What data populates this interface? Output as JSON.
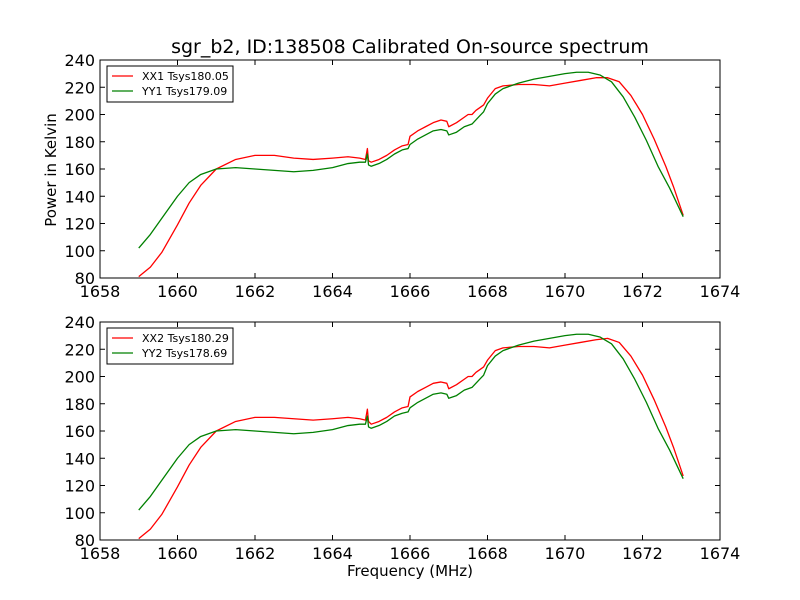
{
  "figure": {
    "title": "sgr_b2, ID:138508 Calibrated On-source spectrum",
    "xlabel": "Frequency (MHz)",
    "ylabel": "Power in Kelvin"
  },
  "colors": {
    "red": "#ff0000",
    "green": "#008000"
  },
  "chart_data": [
    {
      "type": "line",
      "xlim": [
        1658,
        1674
      ],
      "ylim": [
        80,
        240
      ],
      "xticks": [
        1658,
        1660,
        1662,
        1664,
        1666,
        1668,
        1670,
        1672,
        1674
      ],
      "yticks": [
        80,
        100,
        120,
        140,
        160,
        180,
        200,
        220,
        240
      ],
      "ylabel": "Power in Kelvin",
      "xlabel": "",
      "legend_position": "top-left",
      "series": [
        {
          "name": "XX1 Tsys180.05",
          "color": "#ff0000",
          "x": [
            1659.0,
            1659.3,
            1659.6,
            1660.0,
            1660.3,
            1660.6,
            1661.0,
            1661.5,
            1662.0,
            1662.5,
            1663.0,
            1663.5,
            1664.0,
            1664.4,
            1664.7,
            1664.85,
            1664.9,
            1664.93,
            1665.0,
            1665.2,
            1665.4,
            1665.6,
            1665.8,
            1665.95,
            1666.0,
            1666.2,
            1666.4,
            1666.6,
            1666.8,
            1666.95,
            1667.0,
            1667.2,
            1667.4,
            1667.5,
            1667.6,
            1667.7,
            1667.8,
            1667.9,
            1668.0,
            1668.2,
            1668.4,
            1668.8,
            1669.2,
            1669.6,
            1670.0,
            1670.4,
            1670.8,
            1671.1,
            1671.4,
            1671.7,
            1672.0,
            1672.3,
            1672.6,
            1672.8,
            1673.05
          ],
          "y": [
            81,
            88,
            99,
            119,
            135,
            148,
            160,
            167,
            170,
            170,
            168,
            167,
            168,
            169,
            168,
            167,
            175,
            166,
            165,
            167,
            170,
            174,
            177,
            178,
            184,
            188,
            191,
            194,
            196,
            195,
            191,
            194,
            198,
            200,
            200,
            203,
            205,
            207,
            212,
            219,
            221,
            222,
            222,
            221,
            223,
            225,
            227,
            227,
            224,
            214,
            200,
            182,
            162,
            147,
            126
          ]
        },
        {
          "name": "YY1 Tsys179.09",
          "color": "#008000",
          "x": [
            1659.0,
            1659.3,
            1659.6,
            1660.0,
            1660.3,
            1660.6,
            1661.0,
            1661.5,
            1662.0,
            1662.5,
            1663.0,
            1663.5,
            1664.0,
            1664.4,
            1664.7,
            1664.85,
            1664.9,
            1664.93,
            1665.0,
            1665.2,
            1665.4,
            1665.6,
            1665.8,
            1665.95,
            1666.0,
            1666.2,
            1666.4,
            1666.6,
            1666.8,
            1666.95,
            1667.0,
            1667.2,
            1667.4,
            1667.5,
            1667.6,
            1667.7,
            1667.8,
            1667.9,
            1668.0,
            1668.2,
            1668.4,
            1668.8,
            1669.2,
            1669.6,
            1670.0,
            1670.3,
            1670.6,
            1670.9,
            1671.2,
            1671.5,
            1671.8,
            1672.1,
            1672.4,
            1672.7,
            1673.05
          ],
          "y": [
            102,
            112,
            124,
            140,
            150,
            156,
            160,
            161,
            160,
            159,
            158,
            159,
            161,
            164,
            165,
            165,
            171,
            163,
            162,
            164,
            167,
            171,
            174,
            175,
            178,
            182,
            185,
            188,
            189,
            188,
            185,
            187,
            191,
            192,
            193,
            196,
            199,
            202,
            208,
            215,
            219,
            223,
            226,
            228,
            230,
            231,
            231,
            229,
            224,
            213,
            198,
            181,
            162,
            146,
            125
          ]
        }
      ]
    },
    {
      "type": "line",
      "xlim": [
        1658,
        1674
      ],
      "ylim": [
        80,
        240
      ],
      "xticks": [
        1658,
        1660,
        1662,
        1664,
        1666,
        1668,
        1670,
        1672,
        1674
      ],
      "yticks": [
        80,
        100,
        120,
        140,
        160,
        180,
        200,
        220,
        240
      ],
      "xlabel": "Frequency (MHz)",
      "ylabel": "",
      "legend_position": "top-left",
      "series": [
        {
          "name": "XX2 Tsys180.29",
          "color": "#ff0000",
          "x": [
            1659.0,
            1659.3,
            1659.6,
            1660.0,
            1660.3,
            1660.6,
            1661.0,
            1661.5,
            1662.0,
            1662.5,
            1663.0,
            1663.5,
            1664.0,
            1664.4,
            1664.7,
            1664.85,
            1664.9,
            1664.93,
            1665.0,
            1665.2,
            1665.4,
            1665.6,
            1665.8,
            1665.95,
            1666.0,
            1666.2,
            1666.4,
            1666.6,
            1666.8,
            1666.95,
            1667.0,
            1667.2,
            1667.4,
            1667.5,
            1667.6,
            1667.7,
            1667.8,
            1667.9,
            1668.0,
            1668.2,
            1668.4,
            1668.8,
            1669.2,
            1669.6,
            1670.0,
            1670.4,
            1670.8,
            1671.1,
            1671.4,
            1671.7,
            1672.0,
            1672.3,
            1672.6,
            1672.8,
            1673.05
          ],
          "y": [
            81,
            88,
            99,
            119,
            135,
            148,
            160,
            167,
            170,
            170,
            169,
            168,
            169,
            170,
            169,
            168,
            176,
            167,
            165,
            167,
            170,
            174,
            177,
            178,
            185,
            189,
            192,
            195,
            196,
            195,
            191,
            194,
            198,
            200,
            200,
            203,
            205,
            207,
            212,
            219,
            221,
            222,
            222,
            221,
            223,
            225,
            227,
            228,
            225,
            215,
            201,
            183,
            163,
            148,
            127
          ]
        },
        {
          "name": "YY2 Tsys178.69",
          "color": "#008000",
          "x": [
            1659.0,
            1659.3,
            1659.6,
            1660.0,
            1660.3,
            1660.6,
            1661.0,
            1661.5,
            1662.0,
            1662.5,
            1663.0,
            1663.5,
            1664.0,
            1664.4,
            1664.7,
            1664.85,
            1664.9,
            1664.93,
            1665.0,
            1665.2,
            1665.4,
            1665.6,
            1665.8,
            1665.95,
            1666.0,
            1666.2,
            1666.4,
            1666.6,
            1666.8,
            1666.95,
            1667.0,
            1667.2,
            1667.4,
            1667.5,
            1667.6,
            1667.7,
            1667.8,
            1667.9,
            1668.0,
            1668.2,
            1668.4,
            1668.8,
            1669.2,
            1669.6,
            1670.0,
            1670.3,
            1670.6,
            1670.9,
            1671.2,
            1671.5,
            1671.8,
            1672.1,
            1672.4,
            1672.7,
            1673.05
          ],
          "y": [
            102,
            112,
            124,
            140,
            150,
            156,
            160,
            161,
            160,
            159,
            158,
            159,
            161,
            164,
            165,
            165,
            171,
            163,
            162,
            164,
            167,
            171,
            173,
            174,
            177,
            181,
            184,
            187,
            188,
            187,
            184,
            186,
            190,
            191,
            192,
            195,
            198,
            201,
            208,
            215,
            219,
            223,
            226,
            228,
            230,
            231,
            231,
            229,
            224,
            213,
            198,
            181,
            162,
            146,
            125
          ]
        }
      ]
    }
  ]
}
